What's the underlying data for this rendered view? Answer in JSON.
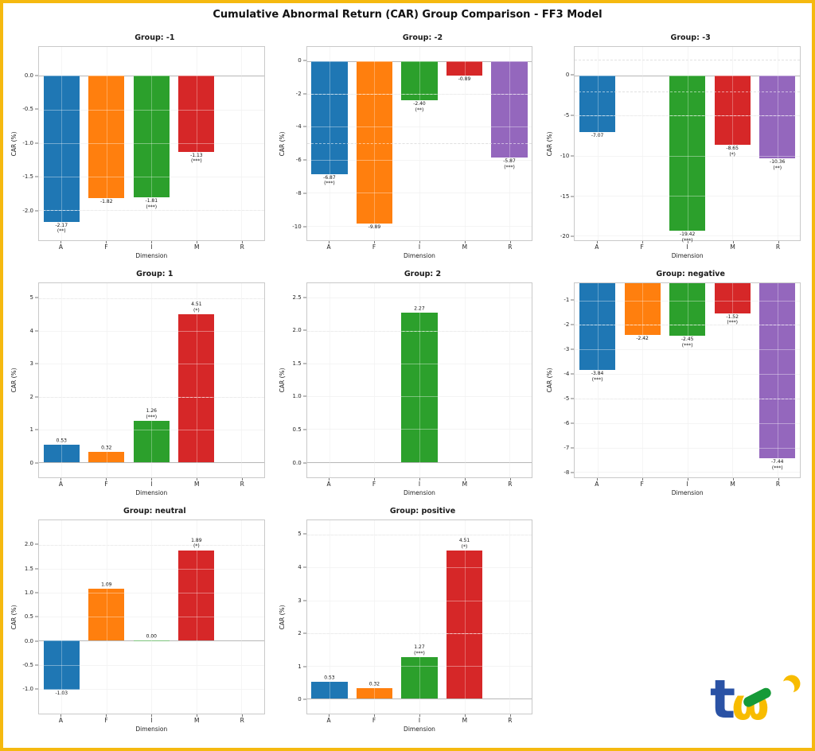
{
  "figure": {
    "title": "Cumulative Abnormal Return (CAR) Group Comparison - FF3 Model",
    "border_color": "#F5B90F",
    "background": "#FFFFFF"
  },
  "palette": {
    "A": "#1f77b4",
    "F": "#ff7f0e",
    "I": "#2ca02c",
    "M": "#d62728",
    "R": "#9467bd"
  },
  "logo": {
    "letters": "tej",
    "blue": "#2A52A5",
    "yellow": "#F8BC00",
    "green": "#169A38"
  },
  "chart_data": [
    {
      "type": "bar",
      "title": "Group: -1",
      "xlabel": "Dimension",
      "ylabel": "CAR (%)",
      "categories": [
        "A",
        "F",
        "I",
        "M",
        "R"
      ],
      "values": [
        -2.17,
        -1.82,
        -1.81,
        -1.13,
        null
      ],
      "value_labels": [
        "-2.17",
        "-1.82",
        "-1.81",
        "-1.13",
        ""
      ],
      "significance": [
        "**",
        "",
        "***",
        "***",
        ""
      ],
      "ylim": [
        -2.45,
        0.43
      ],
      "yticks": [
        0.0,
        -0.5,
        -1.0,
        -1.5,
        -2.0
      ],
      "ytick_labels": [
        "0.0",
        "-0.5",
        "-1.0",
        "-1.5",
        "-2.0"
      ],
      "ref_lines": [
        -2.0
      ],
      "grid": true,
      "legend": false
    },
    {
      "type": "bar",
      "title": "Group: -2",
      "xlabel": "Dimension",
      "ylabel": "CAR (%)",
      "categories": [
        "A",
        "F",
        "I",
        "M",
        "R"
      ],
      "values": [
        -6.87,
        -9.89,
        -2.4,
        -0.89,
        -5.87
      ],
      "value_labels": [
        "-6.87",
        "-9.89",
        "-2.40",
        "-0.89",
        "-5.87"
      ],
      "significance": [
        "***",
        "",
        "**",
        "",
        "***"
      ],
      "ylim": [
        -10.9,
        0.85
      ],
      "yticks": [
        0,
        -2,
        -4,
        -6,
        -8,
        -10
      ],
      "ytick_labels": [
        "0",
        "-2",
        "-4",
        "-6",
        "-8",
        "-10"
      ],
      "ref_lines": [
        -2,
        -5
      ],
      "grid": true,
      "legend": false
    },
    {
      "type": "bar",
      "title": "Group: -3",
      "xlabel": "Dimension",
      "ylabel": "CAR (%)",
      "categories": [
        "A",
        "F",
        "I",
        "M",
        "R"
      ],
      "values": [
        -7.07,
        null,
        -19.42,
        -8.65,
        -10.36
      ],
      "value_labels": [
        "-7.07",
        "",
        "-19.42",
        "-8.65",
        "-10.36"
      ],
      "significance": [
        "",
        "",
        "***",
        "*",
        "**"
      ],
      "ylim": [
        -20.6,
        3.6
      ],
      "yticks": [
        0,
        -5,
        -10,
        -15,
        -20
      ],
      "ytick_labels": [
        "0",
        "-5",
        "-10",
        "-15",
        "-20"
      ],
      "ref_lines": [
        2,
        -2,
        -5
      ],
      "grid": true,
      "legend": false
    },
    {
      "type": "bar",
      "title": "Group: 1",
      "xlabel": "Dimension",
      "ylabel": "CAR (%)",
      "categories": [
        "A",
        "F",
        "I",
        "M",
        "R"
      ],
      "values": [
        0.53,
        0.32,
        1.26,
        4.51,
        null
      ],
      "value_labels": [
        "0.53",
        "0.32",
        "1.26",
        "4.51",
        ""
      ],
      "significance": [
        "",
        "",
        "***",
        "*",
        ""
      ],
      "ylim": [
        -0.45,
        5.45
      ],
      "yticks": [
        5,
        4,
        3,
        2,
        1,
        0
      ],
      "ytick_labels": [
        "5",
        "4",
        "3",
        "2",
        "1",
        "0"
      ],
      "ref_lines": [
        5,
        2
      ],
      "grid": true,
      "legend": false
    },
    {
      "type": "bar",
      "title": "Group: 2",
      "xlabel": "Dimension",
      "ylabel": "CAR (%)",
      "categories": [
        "A",
        "F",
        "I",
        "M",
        "R"
      ],
      "values": [
        null,
        null,
        2.27,
        null,
        null
      ],
      "value_labels": [
        "",
        "",
        "2.27",
        "",
        ""
      ],
      "significance": [
        "",
        "",
        "",
        "",
        ""
      ],
      "ylim": [
        -0.23,
        2.72
      ],
      "yticks": [
        2.5,
        2.0,
        1.5,
        1.0,
        0.5,
        0.0
      ],
      "ytick_labels": [
        "2.5",
        "2.0",
        "1.5",
        "1.0",
        "0.5",
        "0.0"
      ],
      "ref_lines": [
        2.0
      ],
      "grid": true,
      "legend": false
    },
    {
      "type": "bar",
      "title": "Group: negative",
      "xlabel": "Dimension",
      "ylabel": "CAR (%)",
      "categories": [
        "A",
        "F",
        "I",
        "M",
        "R"
      ],
      "values": [
        -3.84,
        -2.42,
        -2.45,
        -1.52,
        -7.44
      ],
      "value_labels": [
        "-3.84",
        "-2.42",
        "-2.45",
        "-1.52",
        "-7.44"
      ],
      "significance": [
        "***",
        "",
        "***",
        "***",
        "***"
      ],
      "ylim": [
        -8.2,
        -0.31
      ],
      "yticks": [
        -1,
        -2,
        -3,
        -4,
        -5,
        -6,
        -7,
        -8
      ],
      "ytick_labels": [
        "-1",
        "-2",
        "-3",
        "-4",
        "-5",
        "-6",
        "-7",
        "-8"
      ],
      "ref_lines": [
        -2,
        -5
      ],
      "grid": true,
      "legend": false
    },
    {
      "type": "bar",
      "title": "Group: neutral",
      "xlabel": "Dimension",
      "ylabel": "CAR (%)",
      "categories": [
        "A",
        "F",
        "I",
        "M",
        "R"
      ],
      "values": [
        -1.03,
        1.09,
        0.0,
        1.89,
        null
      ],
      "value_labels": [
        "-1.03",
        "1.09",
        "0.00",
        "1.89",
        ""
      ],
      "significance": [
        "",
        "",
        "",
        "*",
        ""
      ],
      "ylim": [
        -1.52,
        2.52
      ],
      "yticks": [
        2.0,
        1.5,
        1.0,
        0.5,
        0.0,
        -0.5,
        -1.0
      ],
      "ytick_labels": [
        "2.0",
        "1.5",
        "1.0",
        "0.5",
        "0.0",
        "-0.5",
        "-1.0"
      ],
      "ref_lines": [
        2.0
      ],
      "grid": true,
      "legend": false
    },
    {
      "type": "bar",
      "title": "Group: positive",
      "xlabel": "Dimension",
      "ylabel": "CAR (%)",
      "categories": [
        "A",
        "F",
        "I",
        "M",
        "R"
      ],
      "values": [
        0.53,
        0.32,
        1.27,
        4.51,
        null
      ],
      "value_labels": [
        "0.53",
        "0.32",
        "1.27",
        "4.51",
        ""
      ],
      "significance": [
        "",
        "",
        "***",
        "*",
        ""
      ],
      "ylim": [
        -0.45,
        5.45
      ],
      "yticks": [
        5,
        4,
        3,
        2,
        1,
        0
      ],
      "ytick_labels": [
        "5",
        "4",
        "3",
        "2",
        "1",
        "0"
      ],
      "ref_lines": [
        5,
        2
      ],
      "grid": true,
      "legend": false
    }
  ]
}
